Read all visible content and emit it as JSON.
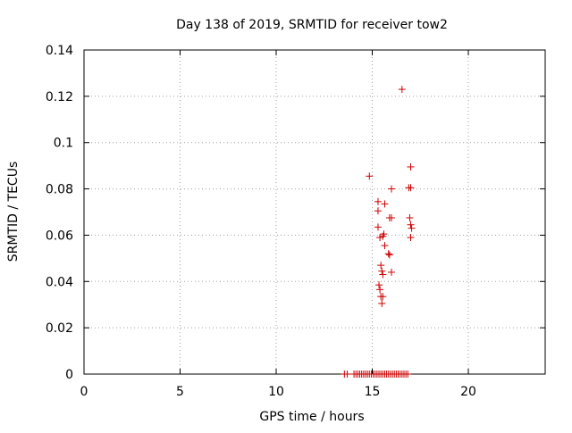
{
  "chart_data": {
    "type": "scatter",
    "title": "Day 138 of 2019, SRMTID for receiver tow2",
    "xlabel": "GPS time / hours",
    "ylabel": "SRMTID / TECUs",
    "xlim": [
      0,
      24
    ],
    "ylim": [
      0,
      0.14
    ],
    "grid": true,
    "marker": "+",
    "x_ticks": [
      0,
      5,
      10,
      15,
      20
    ],
    "x_tick_labels": [
      "0",
      "5",
      "10",
      "15",
      "20"
    ],
    "y_ticks": [
      0,
      0.02,
      0.04,
      0.06,
      0.08,
      0.1,
      0.12,
      0.14
    ],
    "y_tick_labels": [
      "0",
      "0.02",
      "0.04",
      "0.06",
      "0.08",
      "0.1",
      "0.12",
      "0.14"
    ],
    "series": [
      {
        "name": "SRMTID",
        "color": "#cc0000",
        "points": [
          [
            16.55,
            0.123
          ],
          [
            14.85,
            0.0855
          ],
          [
            17.0,
            0.0895
          ],
          [
            16.0,
            0.08
          ],
          [
            16.9,
            0.0805
          ],
          [
            17.0,
            0.0805
          ],
          [
            15.3,
            0.0745
          ],
          [
            15.65,
            0.0735
          ],
          [
            15.3,
            0.0705
          ],
          [
            15.9,
            0.0675
          ],
          [
            16.0,
            0.0675
          ],
          [
            16.95,
            0.0675
          ],
          [
            17.0,
            0.0645
          ],
          [
            17.05,
            0.063
          ],
          [
            15.3,
            0.0635
          ],
          [
            15.6,
            0.0605
          ],
          [
            15.4,
            0.059
          ],
          [
            15.55,
            0.0595
          ],
          [
            17.0,
            0.059
          ],
          [
            15.65,
            0.0555
          ],
          [
            15.85,
            0.052
          ],
          [
            15.9,
            0.0515
          ],
          [
            15.45,
            0.047
          ],
          [
            15.5,
            0.0445
          ],
          [
            16.0,
            0.044
          ],
          [
            15.55,
            0.043
          ],
          [
            15.35,
            0.0385
          ],
          [
            15.4,
            0.0365
          ],
          [
            15.45,
            0.0335
          ],
          [
            15.55,
            0.0335
          ],
          [
            15.5,
            0.0305
          ],
          [
            13.55,
            0.0
          ],
          [
            13.7,
            0.0
          ],
          [
            14.05,
            0.0
          ],
          [
            14.15,
            0.0
          ],
          [
            14.25,
            0.0
          ],
          [
            14.35,
            0.0
          ],
          [
            14.45,
            0.0
          ],
          [
            14.55,
            0.0
          ],
          [
            14.65,
            0.0
          ],
          [
            14.75,
            0.0
          ],
          [
            14.85,
            0.0
          ],
          [
            14.95,
            0.0
          ],
          [
            15.05,
            0.0
          ],
          [
            15.15,
            0.0
          ],
          [
            15.25,
            0.0
          ],
          [
            15.35,
            0.0
          ],
          [
            15.45,
            0.0
          ],
          [
            15.55,
            0.0
          ],
          [
            15.65,
            0.0
          ],
          [
            15.75,
            0.0
          ],
          [
            15.85,
            0.0
          ],
          [
            15.95,
            0.0
          ],
          [
            16.05,
            0.0
          ],
          [
            16.15,
            0.0
          ],
          [
            16.25,
            0.0
          ],
          [
            16.35,
            0.0
          ],
          [
            16.45,
            0.0
          ],
          [
            16.55,
            0.0
          ],
          [
            16.65,
            0.0
          ],
          [
            16.75,
            0.0
          ],
          [
            16.85,
            0.0
          ]
        ]
      }
    ]
  }
}
